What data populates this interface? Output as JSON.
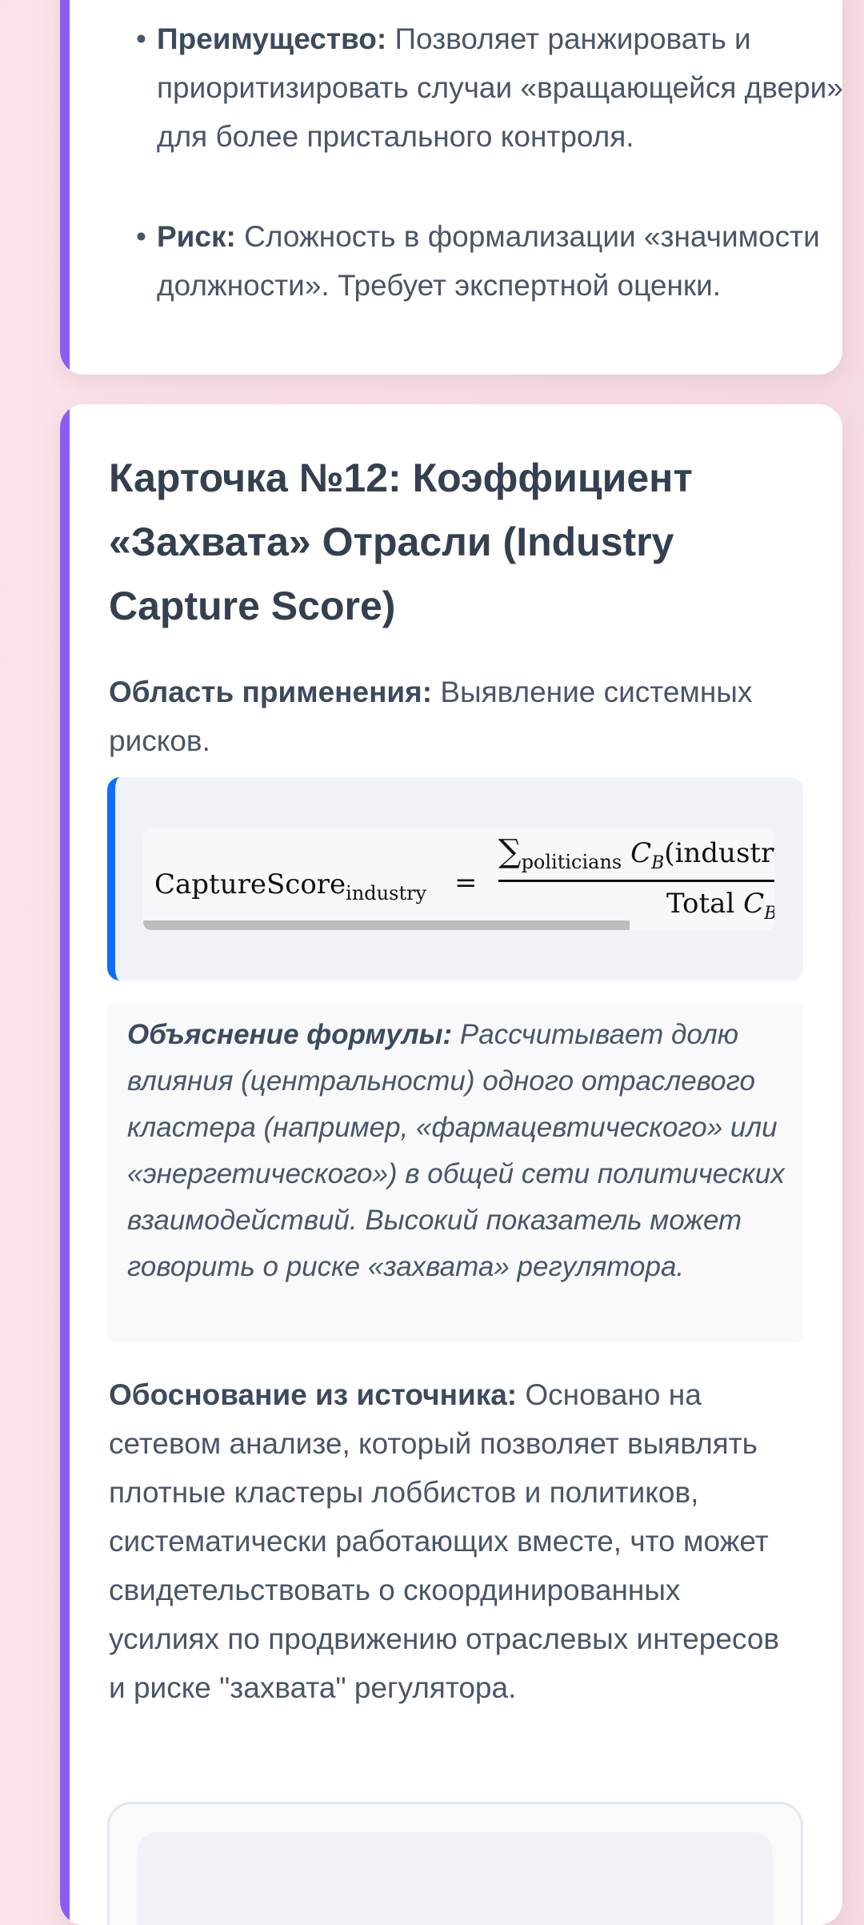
{
  "card_prev": {
    "bullets": [
      {
        "label": "Преимущество:",
        "text": " Позволяет ранжировать и приоритизировать случаи «вращающейся двери» для более пристального контроля."
      },
      {
        "label": "Риск:",
        "text": " Сложность в формализации «значимости должности». Требует экспертной оценки."
      }
    ]
  },
  "card": {
    "title": "Карточка №12: Коэффициент «Захвата» Отрасли (Industry Capture Score)",
    "scope_label": "Область применения:",
    "scope_text": " Выявление системных рисков.",
    "formula": {
      "lhs": "CaptureScore",
      "lhs_sub": "industry",
      "equals": "=",
      "num_sum": "∑",
      "num_sub": "politicians",
      "num_c": "C",
      "num_c_sub": "B",
      "num_arg": "(industry",
      "den": "Total ",
      "den_c": "C",
      "den_c_sub": "B"
    },
    "explanation_label": "Объяснение формулы:",
    "explanation_text": " Рассчитывает долю влияния (центральности) одного отраслевого кластера (например, «фармацевтического» или «энергетического») в общей сети политических взаимодействий. Высокий показатель может говорить о риске «захвата» регулятора.",
    "source_label": "Обоснование из источника:",
    "source_text": " Основано на сетевом анализе, который позволяет выявлять плотные кластеры лоббистов и политиков, систематически работающих вместе, что может свидетельствовать о скоординированных усилиях по продвижению отраслевых интересов и риске \"захвата\" регулятора."
  },
  "colors": {
    "accent": "#8b5cf6",
    "formula_border": "#0d6efd",
    "text": "#4a5568"
  }
}
